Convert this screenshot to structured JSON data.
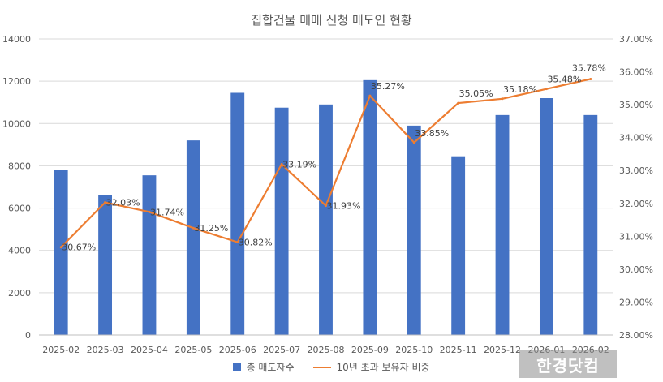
{
  "chart_data": {
    "type": "bar+line",
    "title": "집합건물 매매 신청 매도인 현황",
    "categories": [
      "2025-02",
      "2025-03",
      "2025-04",
      "2025-05",
      "2025-06",
      "2025-07",
      "2025-08",
      "2025-09",
      "2025-10",
      "2025-11",
      "2025-12",
      "2026-01",
      "2026-02"
    ],
    "bar_series": {
      "name": "총 매도자수",
      "values": [
        7800,
        6600,
        7550,
        9200,
        11450,
        10750,
        10900,
        12050,
        9900,
        8450,
        10400,
        11200,
        10400
      ],
      "color": "#4472C4"
    },
    "line_series": {
      "name": "10년 초과 보유자 비중",
      "values": [
        30.67,
        32.03,
        31.74,
        31.25,
        30.82,
        33.19,
        31.93,
        35.27,
        33.85,
        35.05,
        35.18,
        35.48,
        35.78
      ],
      "labels": [
        "30.67%",
        "32.03%",
        "31.74%",
        "31.25%",
        "30.82%",
        "33.19%",
        "31.93%",
        "35.27%",
        "33.85%",
        "35.05%",
        "35.18%",
        "35.48%",
        "35.78%"
      ],
      "color": "#ED7D31"
    },
    "y_left": {
      "min": 0,
      "max": 14000,
      "ticks": [
        "0",
        "2000",
        "4000",
        "6000",
        "8000",
        "10000",
        "12000",
        "14000"
      ]
    },
    "y_right": {
      "min": 28,
      "max": 37,
      "ticks": [
        "28.00%",
        "29.00%",
        "30.00%",
        "31.00%",
        "32.00%",
        "33.00%",
        "34.00%",
        "35.00%",
        "36.00%",
        "37.00%"
      ]
    },
    "grid": true,
    "legend_position": "bottom"
  },
  "watermark": "한경닷컴"
}
